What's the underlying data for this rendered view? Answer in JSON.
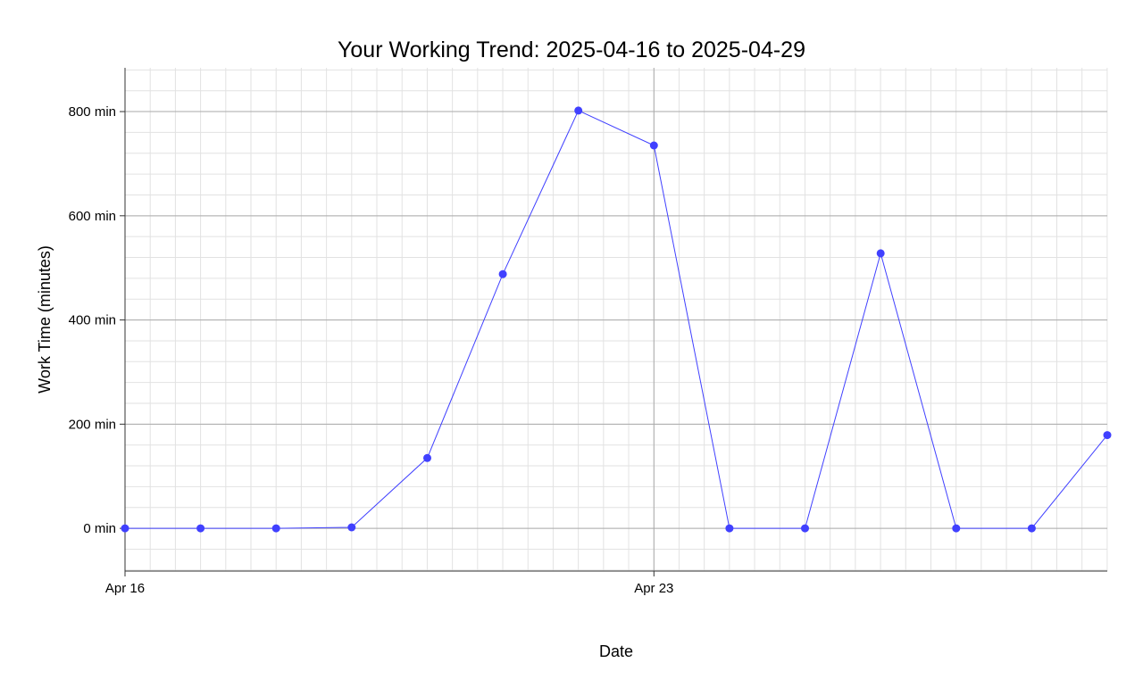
{
  "chart_data": {
    "type": "line",
    "title": "Your Working Trend: 2025-04-16 to 2025-04-29",
    "xlabel": "Date",
    "ylabel": "Work Time (minutes)",
    "x": [
      "2025-04-16",
      "2025-04-17",
      "2025-04-18",
      "2025-04-19",
      "2025-04-20",
      "2025-04-21",
      "2025-04-22",
      "2025-04-23",
      "2025-04-24",
      "2025-04-25",
      "2025-04-26",
      "2025-04-27",
      "2025-04-28",
      "2025-04-29"
    ],
    "series": [
      {
        "values": [
          0,
          0,
          0,
          2,
          135,
          488,
          802,
          735,
          0,
          0,
          528,
          0,
          0,
          179
        ]
      }
    ],
    "xlim": [
      "2025-04-16",
      "2025-04-29"
    ],
    "ylim": [
      -82,
      884
    ],
    "x_ticks": [
      {
        "date": "2025-04-16",
        "label": "Apr 16"
      },
      {
        "date": "2025-04-23",
        "label": "Apr 23"
      }
    ],
    "y_ticks": [
      {
        "value": 0,
        "label": "0 min"
      },
      {
        "value": 200,
        "label": "200 min"
      },
      {
        "value": 400,
        "label": "400 min"
      },
      {
        "value": 600,
        "label": "600 min"
      },
      {
        "value": 800,
        "label": "800 min"
      }
    ],
    "y_minor_step": 40,
    "x_minor_days": 0.3333,
    "grid": true,
    "legend": "none",
    "colors": {
      "series": "#4040ff",
      "major_grid": "#aaaaaa",
      "minor_grid": "#e2e2e2",
      "axis": "#333333"
    }
  }
}
